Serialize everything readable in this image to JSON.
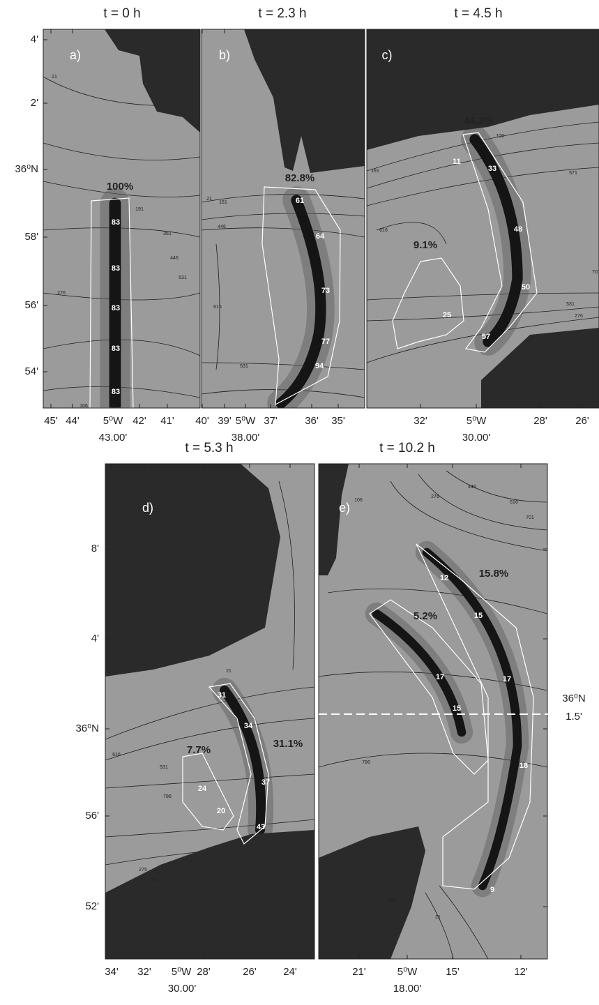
{
  "panels": [
    {
      "time": "t = 0 h",
      "label": "a)",
      "percents": [
        "100%"
      ],
      "wave_labels": [
        "83",
        "83",
        "83",
        "83",
        "83"
      ],
      "x_ticks": [
        "45'",
        "44'",
        "5⁰W",
        "42'",
        "41'"
      ],
      "x_center": "43.00'",
      "contour_labels": [
        "21",
        "191",
        "276",
        "361",
        "446",
        "531",
        "106"
      ]
    },
    {
      "time": "t = 2.3 h",
      "label": "b)",
      "percents": [
        "82.8%"
      ],
      "wave_labels": [
        "61",
        "64",
        "73",
        "77",
        "94"
      ],
      "x_ticks": [
        "40'",
        "39'",
        "5⁰W",
        "37'",
        "36'",
        "35'"
      ],
      "x_center": "38.00'",
      "contour_labels": [
        "21",
        "161",
        "446",
        "531",
        "616"
      ]
    },
    {
      "time": "t = 4.5 h",
      "label": "c)",
      "percents": [
        "44.3%",
        "9.1%"
      ],
      "wave_labels": [
        "11",
        "33",
        "48",
        "50",
        "25",
        "57"
      ],
      "x_ticks": [
        "32'",
        "5⁰W",
        "28'",
        "26'"
      ],
      "x_center": "30.00'",
      "contour_labels": [
        "106",
        "191",
        "571",
        "616",
        "701",
        "531",
        "276"
      ]
    },
    {
      "time": "t = 5.3 h",
      "label": "d)",
      "percents": [
        "7.7%",
        "31.1%"
      ],
      "wave_labels": [
        "31",
        "34",
        "37",
        "24",
        "20",
        "43"
      ],
      "x_ticks": [
        "34'",
        "32'",
        "5⁰W",
        "28'",
        "26'",
        "24'"
      ],
      "x_center": "30.00'",
      "contour_labels": [
        "21",
        "616",
        "531",
        "786",
        "275",
        "106"
      ]
    },
    {
      "time": "t = 10.2 h",
      "label": "e)",
      "percents": [
        "15.8%",
        "5.2%"
      ],
      "wave_labels": [
        "12",
        "15",
        "17",
        "17",
        "15",
        "18",
        "9"
      ],
      "x_ticks": [
        "21'",
        "5⁰W",
        "15'",
        "12'"
      ],
      "x_center": "18.00'",
      "contour_labels": [
        "106",
        "276",
        "446",
        "616",
        "701",
        "786",
        "531",
        "21"
      ]
    }
  ],
  "y_axis_top": [
    "4'",
    "2'",
    "36⁰N",
    "58'",
    "56'",
    "54'"
  ],
  "y_axis_bottom": [
    "8'",
    "4'",
    "36⁰N",
    "56'",
    "52'"
  ],
  "right_label": [
    "36⁰N",
    "1.5'"
  ]
}
